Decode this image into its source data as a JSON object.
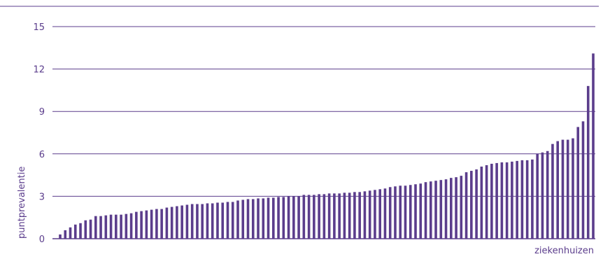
{
  "chart_data": {
    "type": "bar",
    "title": "",
    "xlabel": "ziekenhuizen",
    "ylabel": "puntprevalentie",
    "ylim": [
      0,
      15
    ],
    "yticks": [
      0,
      3,
      6,
      9,
      12,
      15
    ],
    "ytick_labels": [
      "0",
      "3",
      "6",
      "9",
      "12",
      "15"
    ],
    "grid": "horizontal",
    "categories_shown": false,
    "values": [
      0.3,
      0.6,
      0.8,
      1.0,
      1.1,
      1.3,
      1.35,
      1.6,
      1.6,
      1.65,
      1.7,
      1.7,
      1.7,
      1.75,
      1.8,
      1.9,
      1.95,
      2.0,
      2.05,
      2.1,
      2.1,
      2.2,
      2.25,
      2.3,
      2.35,
      2.4,
      2.45,
      2.45,
      2.45,
      2.5,
      2.5,
      2.55,
      2.55,
      2.6,
      2.6,
      2.7,
      2.75,
      2.8,
      2.8,
      2.85,
      2.85,
      2.9,
      2.9,
      2.95,
      2.95,
      3.0,
      3.0,
      3.0,
      3.1,
      3.1,
      3.1,
      3.15,
      3.15,
      3.2,
      3.2,
      3.2,
      3.25,
      3.25,
      3.3,
      3.3,
      3.35,
      3.4,
      3.45,
      3.5,
      3.55,
      3.65,
      3.7,
      3.75,
      3.75,
      3.8,
      3.85,
      3.9,
      4.0,
      4.05,
      4.1,
      4.15,
      4.2,
      4.3,
      4.35,
      4.45,
      4.7,
      4.8,
      4.9,
      5.1,
      5.2,
      5.3,
      5.35,
      5.4,
      5.4,
      5.45,
      5.5,
      5.55,
      5.55,
      5.6,
      6.0,
      6.1,
      6.2,
      6.7,
      6.9,
      7.0,
      7.0,
      7.1,
      7.9,
      8.3,
      10.8,
      13.1
    ],
    "colors": {
      "bar": "#5b3d8c",
      "grid": "#5b3d8c",
      "text": "#5b3d8c"
    }
  }
}
